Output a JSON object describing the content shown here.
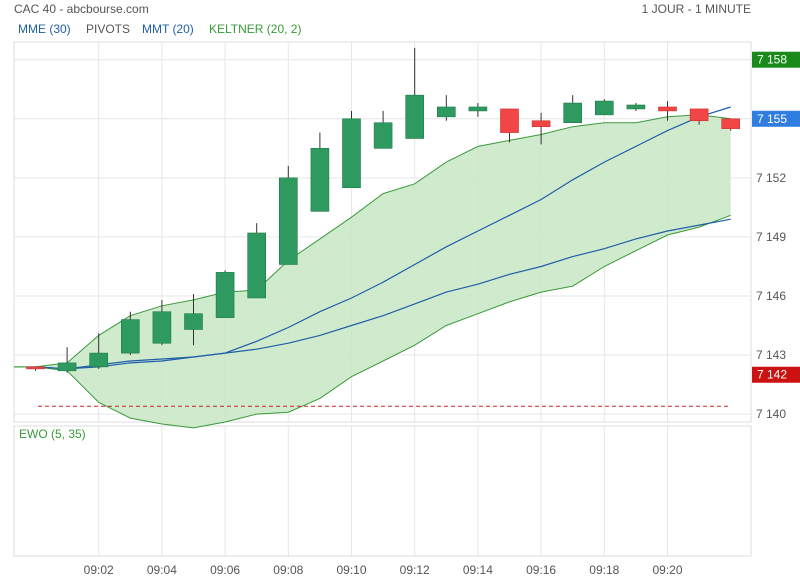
{
  "header": {
    "title": "CAC 40 - abcbourse.com",
    "period": "1 JOUR - 1 MINUTE"
  },
  "legend": [
    {
      "label": "MME (30)",
      "color": "#1f5fa8"
    },
    {
      "label": "PIVOTS",
      "color": "#555555"
    },
    {
      "label": "MMT (20)",
      "color": "#1f5fa8"
    },
    {
      "label": "KELTNER (20, 2)",
      "color": "#3a9a3a"
    }
  ],
  "oscillator": {
    "label": "EWO (5, 35)",
    "color": "#3a9a3a"
  },
  "colors": {
    "up": "#2e9a5f",
    "down": "#f24545",
    "keltner_fill": "#c8e6c4",
    "keltner_line": "#3a9a3a",
    "ma_line": "#1f5fa8",
    "pivot": "#cc2222",
    "grid": "#e6e6e6"
  },
  "chart_data": {
    "type": "candlestick",
    "ylim": [
      7139.6,
      7158.9
    ],
    "yticks": [
      "7 140",
      "7 143",
      "7 146",
      "7 149",
      "7 152",
      "7 155",
      "7 158"
    ],
    "ytick_values": [
      7140,
      7143,
      7146,
      7149,
      7152,
      7155,
      7158
    ],
    "xticks": [
      "09:02",
      "09:04",
      "09:06",
      "09:08",
      "09:10",
      "09:12",
      "09:14",
      "09:16",
      "09:18",
      "09:20"
    ],
    "xtick_minutes": [
      2,
      4,
      6,
      8,
      10,
      12,
      14,
      16,
      18,
      20
    ],
    "badges": [
      {
        "label": "7 158",
        "value": 7158,
        "color": "#1a8a1a"
      },
      {
        "label": "7 155",
        "value": 7155,
        "color": "#2f7de0"
      },
      {
        "label": "7 142",
        "value": 7142,
        "color": "#cc1111"
      }
    ],
    "pivot_level": 7140.4,
    "candles": [
      {
        "t": 0,
        "o": 7142.4,
        "h": 7142.4,
        "l": 7142.2,
        "c": 7142.3
      },
      {
        "t": 1,
        "o": 7142.2,
        "h": 7143.4,
        "l": 7142.1,
        "c": 7142.6
      },
      {
        "t": 2,
        "o": 7142.4,
        "h": 7144.1,
        "l": 7142.3,
        "c": 7143.1
      },
      {
        "t": 3,
        "o": 7143.1,
        "h": 7145.2,
        "l": 7143.0,
        "c": 7144.8
      },
      {
        "t": 4,
        "o": 7143.6,
        "h": 7145.8,
        "l": 7143.5,
        "c": 7145.2
      },
      {
        "t": 5,
        "o": 7144.3,
        "h": 7146.1,
        "l": 7143.5,
        "c": 7145.1
      },
      {
        "t": 6,
        "o": 7144.9,
        "h": 7147.3,
        "l": 7144.9,
        "c": 7147.2
      },
      {
        "t": 7,
        "o": 7145.9,
        "h": 7149.7,
        "l": 7145.9,
        "c": 7149.2
      },
      {
        "t": 8,
        "o": 7147.6,
        "h": 7152.6,
        "l": 7147.6,
        "c": 7152.0
      },
      {
        "t": 9,
        "o": 7150.3,
        "h": 7154.3,
        "l": 7150.3,
        "c": 7153.5
      },
      {
        "t": 10,
        "o": 7151.5,
        "h": 7155.4,
        "l": 7151.5,
        "c": 7155.0
      },
      {
        "t": 11,
        "o": 7153.5,
        "h": 7155.4,
        "l": 7153.5,
        "c": 7154.8
      },
      {
        "t": 12,
        "o": 7154.0,
        "h": 7158.6,
        "l": 7154.0,
        "c": 7156.2
      },
      {
        "t": 13,
        "o": 7155.1,
        "h": 7156.2,
        "l": 7154.9,
        "c": 7155.6
      },
      {
        "t": 14,
        "o": 7155.4,
        "h": 7155.8,
        "l": 7155.1,
        "c": 7155.6
      },
      {
        "t": 15,
        "o": 7155.5,
        "h": 7155.5,
        "l": 7153.8,
        "c": 7154.3
      },
      {
        "t": 16,
        "o": 7154.9,
        "h": 7155.3,
        "l": 7153.7,
        "c": 7154.6
      },
      {
        "t": 17,
        "o": 7154.8,
        "h": 7156.2,
        "l": 7154.8,
        "c": 7155.8
      },
      {
        "t": 18,
        "o": 7155.2,
        "h": 7156.0,
        "l": 7155.2,
        "c": 7155.9
      },
      {
        "t": 19,
        "o": 7155.5,
        "h": 7155.8,
        "l": 7155.4,
        "c": 7155.7
      },
      {
        "t": 20,
        "o": 7155.6,
        "h": 7155.9,
        "l": 7154.9,
        "c": 7155.4
      },
      {
        "t": 21,
        "o": 7155.5,
        "h": 7155.5,
        "l": 7154.7,
        "c": 7154.9
      },
      {
        "t": 22,
        "o": 7155.0,
        "h": 7155.0,
        "l": 7154.4,
        "c": 7154.5
      }
    ],
    "keltner_upper": [
      7142.4,
      7142.6,
      7144.0,
      7145.0,
      7145.5,
      7145.8,
      7146.2,
      7146.3,
      7147.8,
      7148.9,
      7150.0,
      7151.2,
      7151.7,
      7152.8,
      7153.6,
      7153.9,
      7154.2,
      7154.6,
      7154.8,
      7154.8,
      7155.1,
      7155.2,
      7155.0
    ],
    "keltner_lower": [
      7142.4,
      7142.2,
      7140.6,
      7139.8,
      7139.5,
      7139.3,
      7139.6,
      7140.0,
      7140.1,
      7140.8,
      7141.9,
      7142.7,
      7143.5,
      7144.5,
      7145.1,
      7145.7,
      7146.2,
      7146.5,
      7147.5,
      7148.3,
      7149.1,
      7149.5,
      7150.1
    ],
    "series": [
      {
        "name": "MMT (20)",
        "values": [
          7142.4,
          7142.3,
          7142.4,
          7142.6,
          7142.7,
          7142.9,
          7143.1,
          7143.7,
          7144.4,
          7145.2,
          7145.9,
          7146.7,
          7147.6,
          7148.5,
          7149.3,
          7150.1,
          7150.9,
          7151.9,
          7152.8,
          7153.6,
          7154.4,
          7155.1,
          7155.6
        ]
      },
      {
        "name": "MME (30)",
        "values": [
          7142.4,
          7142.3,
          7142.5,
          7142.7,
          7142.8,
          7142.9,
          7143.1,
          7143.3,
          7143.6,
          7144.0,
          7144.5,
          7145.0,
          7145.6,
          7146.2,
          7146.6,
          7147.1,
          7147.5,
          7148.0,
          7148.4,
          7148.9,
          7149.3,
          7149.6,
          7149.9
        ]
      }
    ]
  }
}
